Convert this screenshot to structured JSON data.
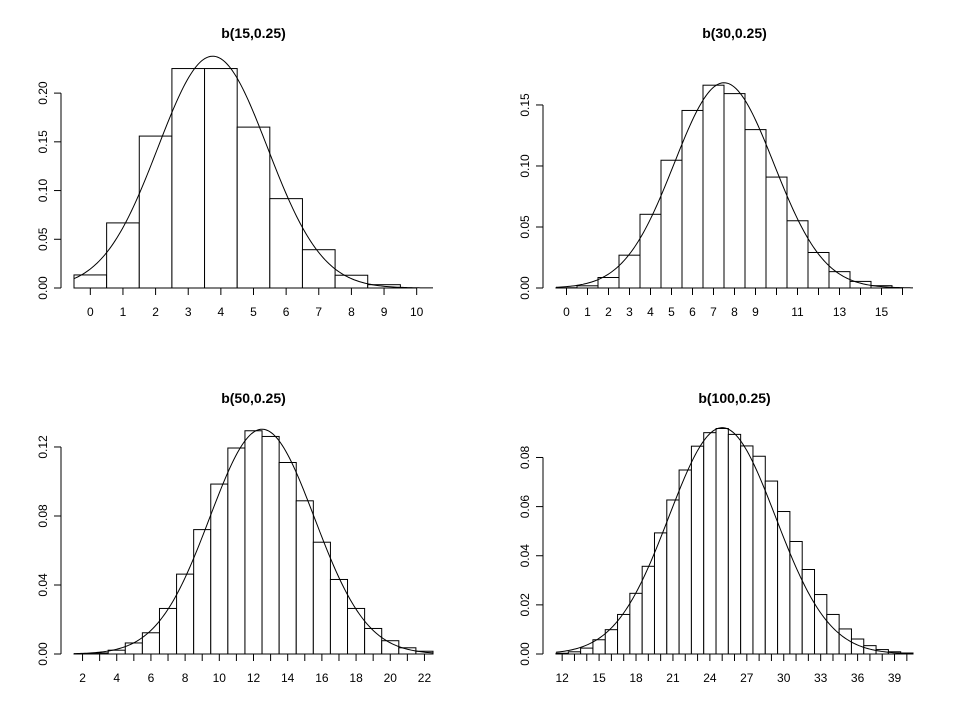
{
  "chart_data": [
    {
      "type": "bar",
      "title": "b(15,0.25)",
      "n": 15,
      "p": 0.25,
      "xlabel": "",
      "ylabel": "",
      "bar_x": [
        0,
        1,
        2,
        3,
        4,
        5,
        6,
        7,
        8,
        9
      ],
      "values": [
        0.0134,
        0.0668,
        0.1559,
        0.2252,
        0.2252,
        0.1651,
        0.0917,
        0.0393,
        0.0131,
        0.0034
      ],
      "xlim": [
        -0.5,
        10.5
      ],
      "ylim": [
        0,
        0.235
      ],
      "xticks": [
        0,
        1,
        2,
        3,
        4,
        5,
        6,
        7,
        8,
        9,
        10
      ],
      "xtick_labels": [
        "0",
        "1",
        "2",
        "3",
        "4",
        "5",
        "6",
        "7",
        "8",
        "9",
        "10"
      ],
      "yticks": [
        0,
        0.05,
        0.1,
        0.15,
        0.2
      ],
      "ytick_labels": [
        "0.00",
        "0.05",
        "0.10",
        "0.15",
        "0.20"
      ],
      "curve": "normal density overlay",
      "grid": false
    },
    {
      "type": "bar",
      "title": "b(30,0.25)",
      "n": 30,
      "p": 0.25,
      "xlabel": "",
      "ylabel": "",
      "bar_x": [
        0,
        1,
        2,
        3,
        4,
        5,
        6,
        7,
        8,
        9,
        10,
        11,
        12,
        13,
        14,
        15
      ],
      "values": [
        0.0002,
        0.0018,
        0.0086,
        0.0269,
        0.0604,
        0.1047,
        0.1455,
        0.1662,
        0.1593,
        0.1298,
        0.0909,
        0.0551,
        0.0291,
        0.0134,
        0.0054,
        0.0019
      ],
      "xlim": [
        -0.5,
        16.5
      ],
      "ylim": [
        0,
        0.168
      ],
      "xticks": [
        0,
        1,
        2,
        3,
        4,
        5,
        6,
        7,
        8,
        9,
        10,
        11,
        12,
        13,
        14,
        15,
        16
      ],
      "xtick_labels": [
        "0",
        "1",
        "2",
        "3",
        "4",
        "5",
        "6",
        "7",
        "8",
        "9",
        "",
        "11",
        "",
        "13",
        "",
        "15",
        ""
      ],
      "yticks": [
        0,
        0.05,
        0.1,
        0.15
      ],
      "ytick_labels": [
        "0.00",
        "0.05",
        "0.10",
        "0.15"
      ],
      "curve": "normal density overlay",
      "grid": false
    },
    {
      "type": "bar",
      "title": "b(50,0.25)",
      "n": 50,
      "p": 0.25,
      "xlabel": "",
      "ylabel": "",
      "bar_x": [
        1,
        2,
        3,
        4,
        5,
        6,
        7,
        8,
        9,
        10,
        11,
        12,
        13,
        14,
        15,
        16,
        17,
        18,
        19,
        20,
        21,
        22
      ],
      "values": [
        0.0,
        0.0001,
        0.0006,
        0.0022,
        0.0064,
        0.0123,
        0.0264,
        0.0463,
        0.0721,
        0.0985,
        0.1194,
        0.1294,
        0.1261,
        0.111,
        0.0888,
        0.0648,
        0.0432,
        0.0264,
        0.0148,
        0.0077,
        0.0036,
        0.0016
      ],
      "xlim": [
        1.5,
        22.5
      ],
      "ylim": [
        0,
        0.131
      ],
      "xticks": [
        2,
        3,
        4,
        5,
        6,
        7,
        8,
        9,
        10,
        11,
        12,
        13,
        14,
        15,
        16,
        17,
        18,
        19,
        20,
        21,
        22
      ],
      "xtick_labels": [
        "2",
        "",
        "4",
        "",
        "6",
        "",
        "8",
        "",
        "10",
        "",
        "12",
        "",
        "14",
        "",
        "16",
        "",
        "18",
        "",
        "20",
        "",
        "22"
      ],
      "yticks": [
        0,
        0.04,
        0.08,
        0.12
      ],
      "ytick_labels": [
        "0.00",
        "0.04",
        "0.08",
        "0.12"
      ],
      "curve": "normal density overlay",
      "grid": false
    },
    {
      "type": "bar",
      "title": "b(100,0.25)",
      "n": 100,
      "p": 0.25,
      "xlabel": "",
      "ylabel": "",
      "bar_x": [
        12,
        13,
        14,
        15,
        16,
        17,
        18,
        19,
        20,
        21,
        22,
        23,
        24,
        25,
        26,
        27,
        28,
        29,
        30,
        31,
        32,
        33,
        34,
        35,
        36,
        37,
        38,
        39,
        40
      ],
      "values": [
        0.0003,
        0.0009,
        0.0024,
        0.0058,
        0.0099,
        0.0161,
        0.0247,
        0.0357,
        0.0493,
        0.0627,
        0.0749,
        0.0846,
        0.0901,
        0.0918,
        0.0894,
        0.0847,
        0.0805,
        0.0704,
        0.058,
        0.0458,
        0.0344,
        0.0242,
        0.0161,
        0.0102,
        0.0061,
        0.0034,
        0.0018,
        0.0009,
        0.0004
      ],
      "xlim": [
        11.5,
        40.5
      ],
      "ylim": [
        0,
        0.092
      ],
      "xticks": [
        12,
        13,
        14,
        15,
        16,
        17,
        18,
        19,
        20,
        21,
        22,
        23,
        24,
        25,
        26,
        27,
        28,
        29,
        30,
        31,
        32,
        33,
        34,
        35,
        36,
        37,
        38,
        39,
        40
      ],
      "xtick_labels": [
        "12",
        "",
        "",
        "15",
        "",
        "",
        "18",
        "",
        "",
        "21",
        "",
        "",
        "24",
        "",
        "",
        "27",
        "",
        "",
        "30",
        "",
        "",
        "33",
        "",
        "",
        "36",
        "",
        "",
        "39",
        ""
      ],
      "yticks": [
        0,
        0.02,
        0.04,
        0.06,
        0.08
      ],
      "ytick_labels": [
        "0.00",
        "0.02",
        "0.04",
        "0.06",
        "0.08"
      ],
      "curve": "normal density overlay",
      "grid": false
    }
  ]
}
